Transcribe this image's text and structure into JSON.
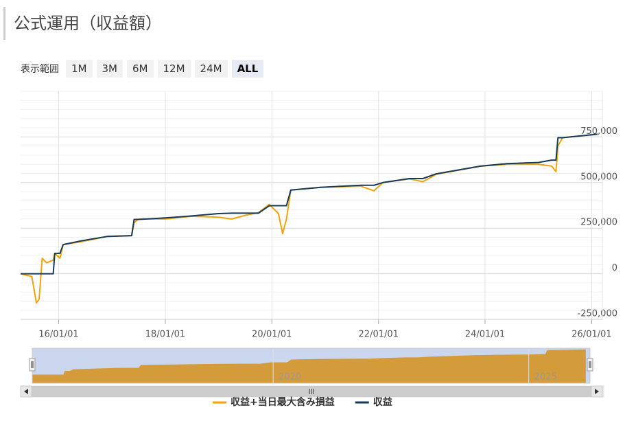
{
  "header": {
    "title": "公式運用（収益額）"
  },
  "range_selector": {
    "label": "表示範囲",
    "buttons": [
      "1M",
      "3M",
      "6M",
      "12M",
      "24M",
      "ALL"
    ],
    "selected": "ALL"
  },
  "chart_data": {
    "type": "line",
    "x": [
      "15/04/15",
      "15/07/01",
      "15/08/01",
      "15/08/20",
      "15/09/10",
      "15/10/10",
      "15/11/25",
      "15/12/05",
      "16/01/10",
      "16/02/01",
      "16/06/01",
      "16/12/01",
      "17/05/15",
      "17/06/01",
      "17/07/01",
      "18/01/01",
      "18/07/01",
      "19/01/01",
      "19/04/01",
      "19/07/01",
      "19/10/01",
      "19/12/15",
      "20/02/15",
      "20/03/15",
      "20/04/10",
      "20/05/10",
      "20/12/01",
      "21/09/01",
      "21/12/01",
      "22/02/01",
      "22/08/01",
      "22/11/01",
      "23/02/01",
      "23/12/01",
      "24/06/01",
      "25/01/01",
      "25/04/01",
      "25/05/01",
      "25/05/15",
      "25/06/15",
      "26/02/10"
    ],
    "series": [
      {
        "name": "収益+当日最大含み損益",
        "color": "#f0a30a",
        "values": [
          0,
          -15000,
          -160000,
          -140000,
          85000,
          60000,
          75000,
          112000,
          85000,
          160000,
          175000,
          205000,
          209000,
          280000,
          300000,
          300000,
          315000,
          310000,
          300000,
          320000,
          335000,
          380000,
          330000,
          220000,
          300000,
          459000,
          474000,
          480000,
          455000,
          500000,
          520000,
          505000,
          545000,
          590000,
          600000,
          600000,
          590000,
          560000,
          700000,
          746000,
          765000
        ]
      },
      {
        "name": "収益",
        "color": "#163a5a",
        "values": [
          0,
          0,
          0,
          0,
          0,
          0,
          0,
          112000,
          112000,
          160000,
          180000,
          205000,
          209000,
          298000,
          298000,
          306000,
          317000,
          330000,
          332000,
          332000,
          332000,
          373000,
          373000,
          373000,
          373000,
          459000,
          474000,
          485000,
          485000,
          500000,
          522000,
          522000,
          548000,
          590000,
          604000,
          610000,
          623000,
          623000,
          746000,
          746000,
          765000
        ]
      }
    ],
    "xlim": [
      "15/04/15",
      "26/03/15"
    ],
    "xticks": [
      "16/01/01",
      "18/01/01",
      "20/01/01",
      "22/01/01",
      "24/01/01",
      "26/01/01"
    ],
    "ylim": [
      -250000,
      1000000
    ],
    "yticks": [
      {
        "value": -250000,
        "label": "-250,000"
      },
      0,
      {
        "value": 250000,
        "label": "250,000"
      },
      {
        "value": 500000,
        "label": "500,000"
      },
      {
        "value": 750000,
        "label": "750,000"
      }
    ],
    "y_minor_tick_interval": 50000,
    "grid": true,
    "legend": "bottom",
    "navigator": {
      "series": 1,
      "color": "#d39b3a",
      "xticks": [
        {
          "value": "20/01/01",
          "label": "2020"
        },
        {
          "value": "25/01/01",
          "label": "2025"
        }
      ]
    }
  }
}
